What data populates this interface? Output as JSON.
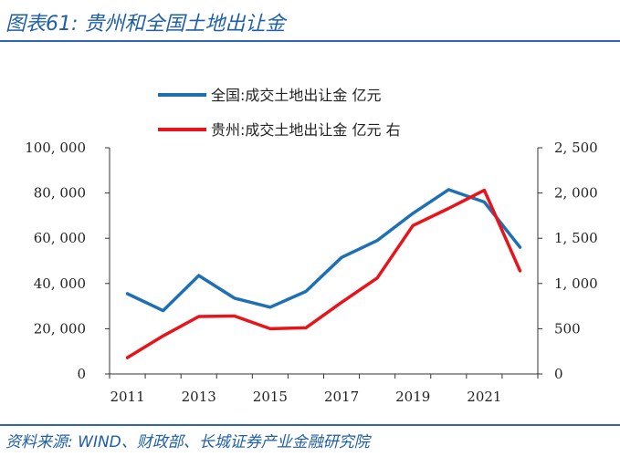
{
  "header": {
    "title": "图表61:  贵州和全国土地出让金"
  },
  "footer": {
    "source": "资料来源:  WIND、财政部、长城证券产业金融研究院"
  },
  "colors": {
    "series1": "#1f6fb5",
    "series2": "#e8141c",
    "rule": "#2e67b1",
    "text": "#1f5fa8"
  },
  "chart_data": {
    "type": "line",
    "title": "",
    "x": [
      2011,
      2012,
      2013,
      2014,
      2015,
      2016,
      2017,
      2018,
      2019,
      2020,
      2021,
      2022
    ],
    "xticks": [
      "2011",
      "2013",
      "2015",
      "2017",
      "2019",
      "2021"
    ],
    "xtick_values": [
      2011,
      2013,
      2015,
      2017,
      2019,
      2021
    ],
    "xlim": [
      2010.5,
      2022.5
    ],
    "y_left": {
      "lim": [
        0,
        100000
      ],
      "ticks": [
        "0",
        "20, 000",
        "40, 000",
        "60, 000",
        "80, 000",
        "100, 000"
      ],
      "tick_values": [
        0,
        20000,
        40000,
        60000,
        80000,
        100000
      ]
    },
    "y_right": {
      "lim": [
        0,
        2500
      ],
      "ticks": [
        "0",
        "500",
        "1, 000",
        "1, 500",
        "2, 000",
        "2, 500"
      ],
      "tick_values": [
        0,
        500,
        1000,
        1500,
        2000,
        2500
      ]
    },
    "series": [
      {
        "name": "全国:成交土地出让金  亿元",
        "axis": "left",
        "color": "#1f6fb5",
        "values": [
          35500,
          28000,
          43500,
          33500,
          29500,
          36500,
          51500,
          59000,
          71000,
          81500,
          76000,
          56000
        ]
      },
      {
        "name": "贵州:成交土地出让金  亿元  右",
        "axis": "right",
        "color": "#e8141c",
        "values": [
          180,
          420,
          635,
          640,
          500,
          510,
          790,
          1060,
          1640,
          1830,
          2030,
          1140
        ]
      }
    ],
    "legend": "top-center"
  }
}
